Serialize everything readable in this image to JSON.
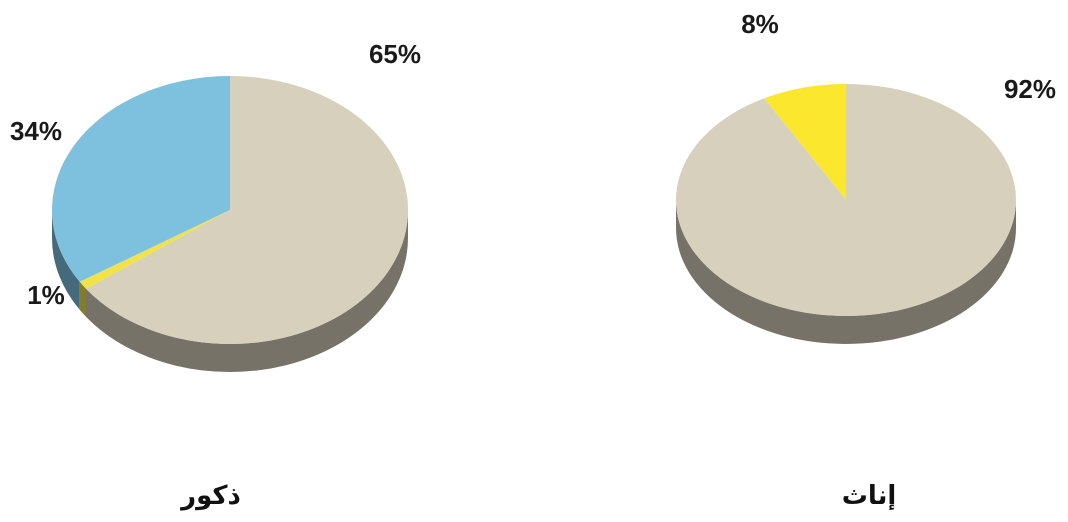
{
  "chart_data": [
    {
      "type": "pie",
      "caption": "ذكور",
      "slices": [
        {
          "label": "65%",
          "value": 65,
          "color": "#d6d0bc"
        },
        {
          "label": "1%",
          "value": 1,
          "color": "#f1e24a"
        },
        {
          "label": "34%",
          "value": 34,
          "color": "#7ec1df"
        }
      ]
    },
    {
      "type": "pie",
      "caption": "إناث",
      "slices": [
        {
          "label": "92%",
          "value": 92,
          "color": "#d6d0bc"
        },
        {
          "label": "8%",
          "value": 8,
          "color": "#fbe72e"
        }
      ]
    }
  ]
}
